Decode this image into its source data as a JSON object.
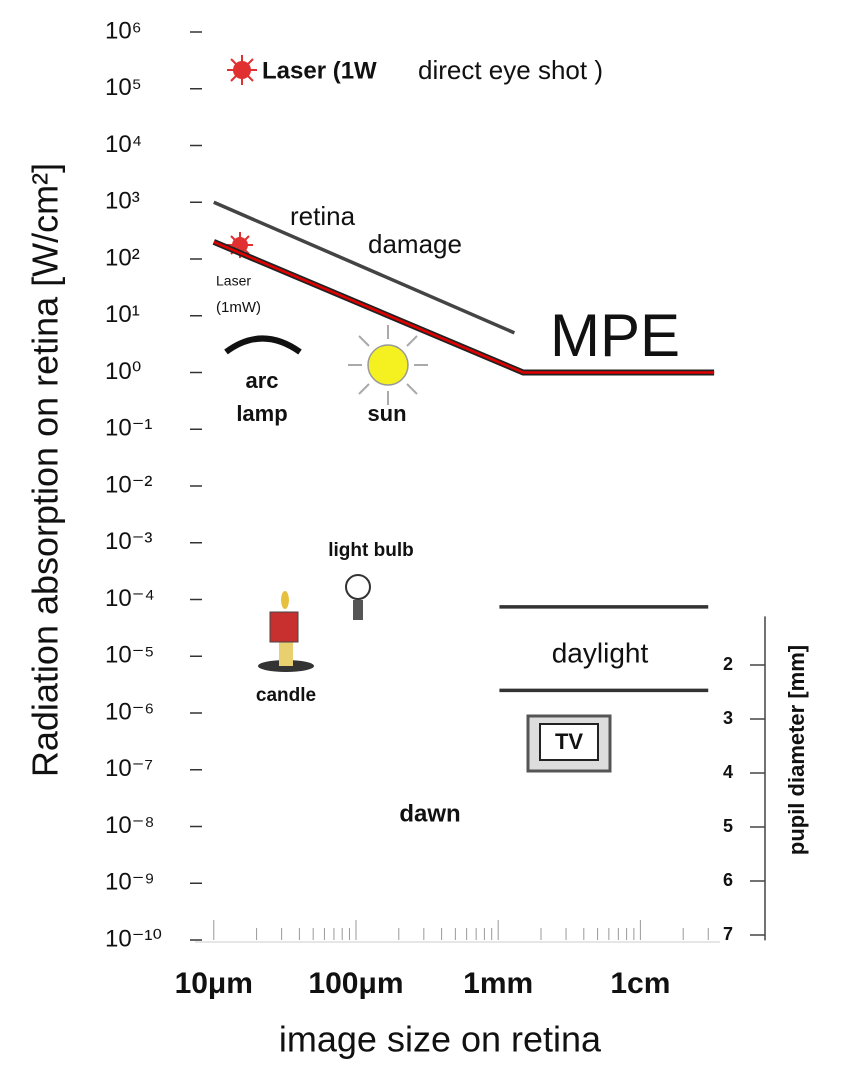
{
  "chart_data": {
    "type": "line",
    "ylabel": "Radiation absorption on retina [W/cm²]",
    "xlabel": "image size on retina",
    "ylog": true,
    "xlog": true,
    "ylim": [
      1e-10,
      1000000.0
    ],
    "yticks": [
      {
        "value": 1e-10,
        "label": "10⁻¹⁰"
      },
      {
        "value": 1e-09,
        "label": "10⁻⁹"
      },
      {
        "value": 1e-08,
        "label": "10⁻⁸"
      },
      {
        "value": 1e-07,
        "label": "10⁻⁷"
      },
      {
        "value": 1e-06,
        "label": "10⁻⁶"
      },
      {
        "value": 1e-05,
        "label": "10⁻⁵"
      },
      {
        "value": 0.0001,
        "label": "10⁻⁴"
      },
      {
        "value": 0.001,
        "label": "10⁻³"
      },
      {
        "value": 0.01,
        "label": "10⁻²"
      },
      {
        "value": 0.1,
        "label": "10⁻¹"
      },
      {
        "value": 1,
        "label": "10⁰"
      },
      {
        "value": 10,
        "label": "10¹"
      },
      {
        "value": 100,
        "label": "10²"
      },
      {
        "value": 1000,
        "label": "10³"
      },
      {
        "value": 10000,
        "label": "10⁴"
      },
      {
        "value": 100000,
        "label": "10⁵"
      },
      {
        "value": 1000000,
        "label": "10⁶"
      }
    ],
    "xlim": [
      8e-06,
      0.04
    ],
    "xticks": [
      {
        "value": 1e-05,
        "label": "10μm"
      },
      {
        "value": 0.0001,
        "label": "100μm"
      },
      {
        "value": 0.001,
        "label": "1mm"
      },
      {
        "value": 0.01,
        "label": "1cm"
      }
    ],
    "y2label": "pupil diameter [mm]",
    "y2lim": [
      1.1,
      7.1
    ],
    "y2ticks": [
      2,
      3,
      4,
      5,
      6,
      7
    ],
    "series": [
      {
        "color": "#444444",
        "x": [
          1e-05,
          0.0013
        ],
        "values": [
          1000,
          5
        ]
      },
      {
        "color": "#e00000",
        "x": [
          1e-05,
          0.0015,
          0.033
        ],
        "values": [
          200,
          1,
          1
        ]
      },
      {
        "color": "#333333",
        "x": [
          0.00102,
          0.03
        ],
        "values": [
          7.4e-05,
          7.4e-05
        ]
      },
      {
        "color": "#333333",
        "x": [
          0.00102,
          0.03
        ],
        "values": [
          2.5e-06,
          2.5e-06
        ]
      }
    ],
    "annotations": [
      "Laser (1W",
      "direct eye shot )",
      "retina",
      "damage",
      "Laser",
      "(1mW)",
      "arc",
      "lamp",
      "sun",
      "MPE",
      "light bulb",
      "candle",
      "daylight",
      "TV",
      "dawn"
    ]
  }
}
